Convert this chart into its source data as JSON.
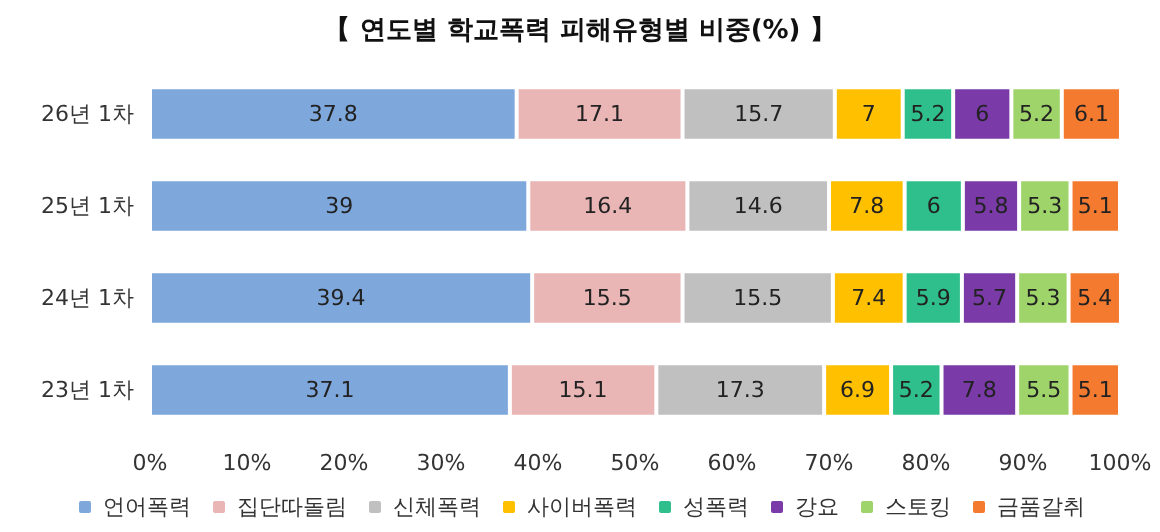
{
  "chart_data": {
    "type": "bar",
    "title": "【 연도별 학교폭력 피해유형별 비중(%) 】",
    "orientation": "horizontal",
    "stacked": true,
    "data_labels": true,
    "legend": "bottom",
    "grid": false,
    "categories": [
      "26년 1차",
      "25년 1차",
      "24년 1차",
      "23년 1차"
    ],
    "xlim": [
      0,
      100
    ],
    "xticks": [
      {
        "value": 0,
        "label": "0%"
      },
      {
        "value": 10,
        "label": "10%"
      },
      {
        "value": 20,
        "label": "20%"
      },
      {
        "value": 30,
        "label": "30%"
      },
      {
        "value": 40,
        "label": "40%"
      },
      {
        "value": 50,
        "label": "50%"
      },
      {
        "value": 60,
        "label": "60%"
      },
      {
        "value": 70,
        "label": "70%"
      },
      {
        "value": 80,
        "label": "80%"
      },
      {
        "value": 90,
        "label": "90%"
      },
      {
        "value": 100,
        "label": "100%"
      }
    ],
    "series": [
      {
        "name": "언어폭력",
        "color": "#7ea7dc",
        "values": [
          37.8,
          39,
          39.4,
          37.1
        ]
      },
      {
        "name": "집단따돌림",
        "color": "#e9b5b5",
        "values": [
          17.1,
          16.4,
          15.5,
          15.1
        ]
      },
      {
        "name": "신체폭력",
        "color": "#c0c0c0",
        "values": [
          15.7,
          14.6,
          15.5,
          17.3
        ]
      },
      {
        "name": "사이버폭력",
        "color": "#ffc000",
        "values": [
          7,
          7.8,
          7.4,
          6.9
        ]
      },
      {
        "name": "성폭력",
        "color": "#2ebf8c",
        "values": [
          5.2,
          6,
          5.9,
          5.2
        ]
      },
      {
        "name": "강요",
        "color": "#7a3aa8",
        "values": [
          6,
          5.8,
          5.7,
          7.8
        ]
      },
      {
        "name": "스토킹",
        "color": "#9fd46a",
        "values": [
          5.2,
          5.3,
          5.3,
          5.5
        ]
      },
      {
        "name": "금품갈취",
        "color": "#f47a30",
        "values": [
          6.1,
          5.1,
          5.4,
          5.1
        ]
      }
    ]
  }
}
